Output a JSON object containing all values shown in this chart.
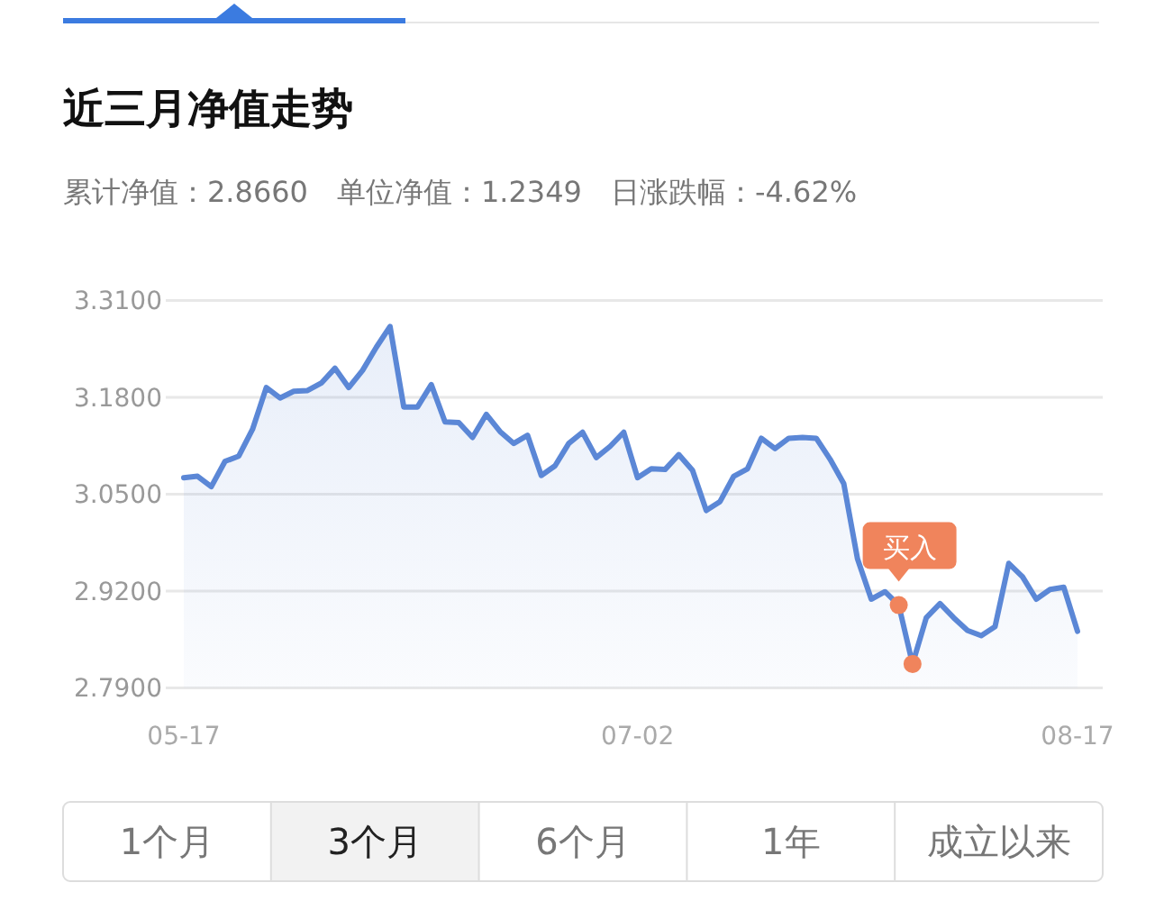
{
  "chart_data": {
    "type": "area",
    "title": "近三月净值走势",
    "subtitle": "累计净值：2.8660　单位净值：1.2349　日涨跌幅：-4.62%",
    "categories": [
      "05-17",
      null,
      null,
      null,
      null,
      null,
      null,
      null,
      null,
      null,
      null,
      null,
      null,
      null,
      null,
      null,
      null,
      null,
      null,
      null,
      null,
      null,
      null,
      null,
      null,
      null,
      null,
      null,
      null,
      null,
      null,
      null,
      null,
      "07-02",
      null,
      null,
      null,
      null,
      null,
      null,
      null,
      null,
      null,
      null,
      null,
      null,
      null,
      null,
      null,
      null,
      null,
      null,
      null,
      null,
      null,
      null,
      null,
      null,
      null,
      null,
      null,
      null,
      null,
      null,
      null,
      "08-17"
    ],
    "series": [
      {
        "color": "#5b87d6",
        "values": [
          3.072,
          3.074,
          3.06,
          3.094,
          3.101,
          3.137,
          3.193,
          3.179,
          3.188,
          3.189,
          3.199,
          3.219,
          3.193,
          3.216,
          3.247,
          3.275,
          3.167,
          3.167,
          3.197,
          3.147,
          3.146,
          3.126,
          3.157,
          3.134,
          3.118,
          3.129,
          3.075,
          3.088,
          3.118,
          3.133,
          3.099,
          3.114,
          3.133,
          3.072,
          3.084,
          3.083,
          3.103,
          3.082,
          3.028,
          3.04,
          3.074,
          3.084,
          3.125,
          3.111,
          3.125,
          3.126,
          3.125,
          3.097,
          3.064,
          2.963,
          2.909,
          2.919,
          2.901,
          2.822,
          2.884,
          2.903,
          2.884,
          2.867,
          2.86,
          2.872,
          2.957,
          2.939,
          2.909,
          2.922,
          2.925,
          2.866
        ]
      },
      {
        "type": "scatter",
        "color": "#f0845c",
        "values": [
          null,
          null,
          null,
          null,
          null,
          null,
          null,
          null,
          null,
          null,
          null,
          null,
          null,
          null,
          null,
          null,
          null,
          null,
          null,
          null,
          null,
          null,
          null,
          null,
          null,
          null,
          null,
          null,
          null,
          null,
          null,
          null,
          null,
          null,
          null,
          null,
          null,
          null,
          null,
          null,
          null,
          null,
          null,
          null,
          null,
          null,
          null,
          null,
          null,
          null,
          null,
          null,
          2.901,
          2.822,
          null,
          null,
          null,
          null,
          null,
          null,
          null,
          null,
          null,
          null,
          null,
          null
        ]
      }
    ],
    "ylim": [
      2.79,
      3.31
    ],
    "yticks": [
      {
        "value": 2.79,
        "label": "2.7900"
      },
      {
        "value": 2.92,
        "label": "2.9200"
      },
      {
        "value": 3.05,
        "label": "3.0500"
      },
      {
        "value": 3.18,
        "label": "3.1800"
      },
      {
        "value": 3.31,
        "label": "3.3100"
      }
    ],
    "grid": "y",
    "line_style": "solid",
    "annotations": [
      "买入",
      "1个月",
      "3个月",
      "6个月",
      "1年",
      "成立以来"
    ]
  }
}
